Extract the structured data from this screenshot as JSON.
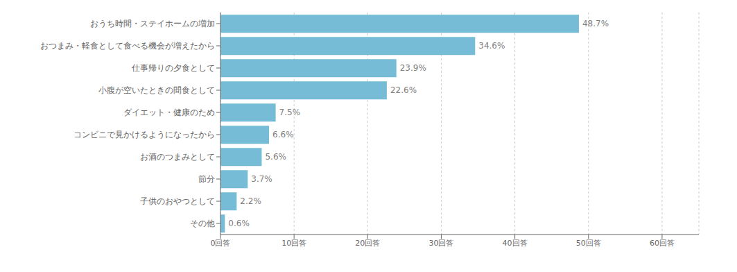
{
  "chart_data": {
    "type": "bar",
    "orientation": "horizontal",
    "categories": [
      "おうち時間・ステイホームの増加",
      "おつまみ・軽食として食べる機会が増えたから",
      "仕事帰りの夕食として",
      "小腹が空いたときの間食として",
      "ダイエット・健康のため",
      "コンビニで見かけるようになったから",
      "お酒のつまみとして",
      "節分",
      "子供のおやつとして",
      "その他"
    ],
    "values": [
      48.7,
      34.6,
      23.9,
      22.6,
      7.5,
      6.6,
      5.6,
      3.7,
      2.2,
      0.6
    ],
    "value_labels": [
      "48.7%",
      "34.6%",
      "23.9%",
      "22.6%",
      "7.5%",
      "6.6%",
      "5.6%",
      "3.7%",
      "2.2%",
      "0.6%"
    ],
    "data_labels": true,
    "color": "#76bcd6",
    "xlim": [
      0,
      65
    ],
    "xticks": [
      {
        "value": 0,
        "label": "0回答"
      },
      {
        "value": 10,
        "label": "10回答"
      },
      {
        "value": 20,
        "label": "20回答"
      },
      {
        "value": 30,
        "label": "30回答"
      },
      {
        "value": 40,
        "label": "40回答"
      },
      {
        "value": 50,
        "label": "50回答"
      },
      {
        "value": 60,
        "label": "60回答"
      }
    ],
    "grid": true
  }
}
